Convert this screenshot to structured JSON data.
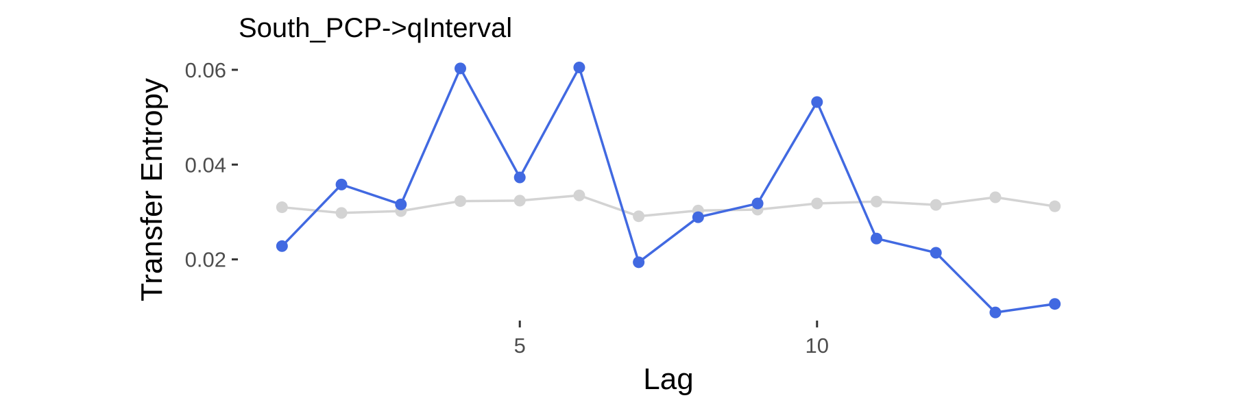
{
  "chart_data": {
    "type": "line",
    "title": "South_PCP->qInterval",
    "xlabel": "Lag",
    "ylabel": "Transfer Entropy",
    "x": [
      1,
      2,
      3,
      4,
      5,
      6,
      7,
      8,
      9,
      10,
      11,
      12,
      13,
      14
    ],
    "xticks": [
      5,
      10
    ],
    "xtick_labels": [
      "5",
      "10"
    ],
    "yticks": [
      0.02,
      0.04,
      0.06
    ],
    "ytick_labels": [
      "0.02",
      "0.04",
      "0.06"
    ],
    "xlim": [
      0.35,
      14.65
    ],
    "ylim": [
      0.0068,
      0.0623
    ],
    "grid": false,
    "legend": "none",
    "series": [
      {
        "color": "#4169e1",
        "values": [
          0.0228,
          0.0358,
          0.0316,
          0.0603,
          0.0373,
          0.0605,
          0.0194,
          0.0289,
          0.0318,
          0.0532,
          0.0244,
          0.0214,
          0.0088,
          0.0106
        ]
      },
      {
        "color": "#d3d3d3",
        "values": [
          0.031,
          0.0298,
          0.0302,
          0.0323,
          0.0324,
          0.0335,
          0.0291,
          0.0303,
          0.0305,
          0.0318,
          0.0322,
          0.0315,
          0.0331,
          0.0312
        ]
      }
    ]
  }
}
